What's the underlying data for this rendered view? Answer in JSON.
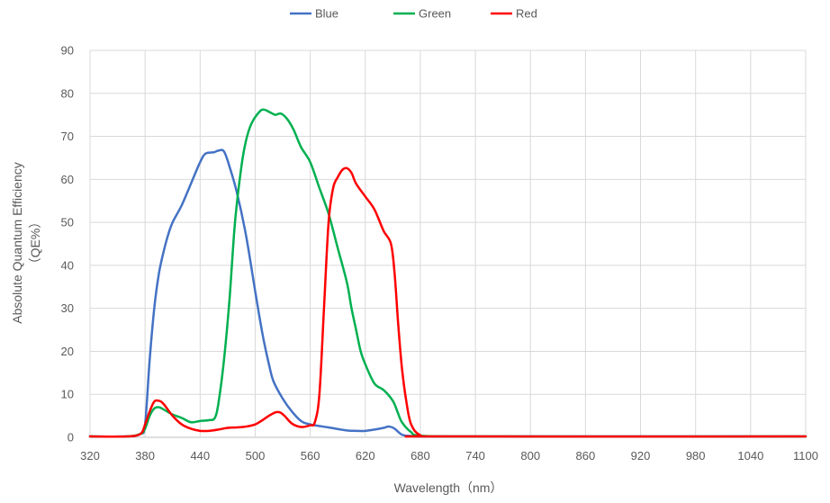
{
  "chart_data": {
    "type": "line",
    "xlabel": "Wavelength（nm）",
    "ylabel_lines": [
      "Absolute Quantum Efficiency",
      "（QE%）"
    ],
    "xlim": [
      320,
      1100
    ],
    "ylim": [
      0,
      90
    ],
    "xticks": [
      320,
      380,
      440,
      500,
      560,
      620,
      680,
      740,
      800,
      860,
      920,
      980,
      1040,
      1100
    ],
    "yticks": [
      0,
      10,
      20,
      30,
      40,
      50,
      60,
      70,
      80,
      90
    ],
    "grid": true,
    "legend_position": "top",
    "series": [
      {
        "name": "Blue",
        "color": "#4472C4",
        "points": [
          [
            320,
            0.2
          ],
          [
            360,
            0.2
          ],
          [
            375,
            0.8
          ],
          [
            380,
            3
          ],
          [
            385,
            18
          ],
          [
            390,
            30
          ],
          [
            395,
            38
          ],
          [
            400,
            43
          ],
          [
            405,
            47
          ],
          [
            410,
            50
          ],
          [
            420,
            54
          ],
          [
            430,
            59
          ],
          [
            440,
            64
          ],
          [
            446,
            66
          ],
          [
            455,
            66.3
          ],
          [
            460,
            66.7
          ],
          [
            466,
            66.5
          ],
          [
            472,
            63
          ],
          [
            480,
            57
          ],
          [
            490,
            47
          ],
          [
            500,
            34
          ],
          [
            508,
            24
          ],
          [
            515,
            17
          ],
          [
            520,
            13
          ],
          [
            530,
            9
          ],
          [
            540,
            6
          ],
          [
            550,
            3.8
          ],
          [
            560,
            3
          ],
          [
            580,
            2.3
          ],
          [
            600,
            1.6
          ],
          [
            610,
            1.5
          ],
          [
            620,
            1.5
          ],
          [
            630,
            1.8
          ],
          [
            640,
            2.2
          ],
          [
            646,
            2.5
          ],
          [
            652,
            2
          ],
          [
            660,
            0.6
          ],
          [
            670,
            0.3
          ],
          [
            680,
            0.2
          ],
          [
            740,
            0.2
          ],
          [
            1100,
            0.2
          ]
        ]
      },
      {
        "name": "Green",
        "color": "#00B050",
        "points": [
          [
            320,
            0.2
          ],
          [
            360,
            0.2
          ],
          [
            375,
            0.8
          ],
          [
            380,
            2
          ],
          [
            385,
            5
          ],
          [
            390,
            6.7
          ],
          [
            395,
            7
          ],
          [
            400,
            6.5
          ],
          [
            410,
            5.3
          ],
          [
            420,
            4.5
          ],
          [
            430,
            3.5
          ],
          [
            440,
            3.8
          ],
          [
            450,
            4
          ],
          [
            456,
            4.5
          ],
          [
            460,
            8
          ],
          [
            466,
            18
          ],
          [
            472,
            32
          ],
          [
            478,
            50
          ],
          [
            485,
            63
          ],
          [
            490,
            69
          ],
          [
            496,
            73
          ],
          [
            505,
            75.8
          ],
          [
            510,
            76.2
          ],
          [
            517,
            75.5
          ],
          [
            522,
            75
          ],
          [
            528,
            75.3
          ],
          [
            535,
            74
          ],
          [
            542,
            71.5
          ],
          [
            550,
            67.5
          ],
          [
            560,
            64
          ],
          [
            570,
            58
          ],
          [
            580,
            52
          ],
          [
            590,
            44
          ],
          [
            600,
            36
          ],
          [
            605,
            30
          ],
          [
            610,
            25
          ],
          [
            615,
            20
          ],
          [
            620,
            17
          ],
          [
            630,
            12.5
          ],
          [
            640,
            11
          ],
          [
            650,
            8.5
          ],
          [
            655,
            6
          ],
          [
            660,
            3.5
          ],
          [
            670,
            1.2
          ],
          [
            680,
            0.4
          ],
          [
            740,
            0.2
          ],
          [
            1100,
            0.2
          ]
        ]
      },
      {
        "name": "Red",
        "color": "#FF0000",
        "points": [
          [
            320,
            0.2
          ],
          [
            360,
            0.2
          ],
          [
            375,
            0.8
          ],
          [
            380,
            3
          ],
          [
            385,
            6
          ],
          [
            390,
            8.3
          ],
          [
            395,
            8.5
          ],
          [
            400,
            7.8
          ],
          [
            410,
            5
          ],
          [
            420,
            3
          ],
          [
            430,
            2
          ],
          [
            440,
            1.5
          ],
          [
            450,
            1.5
          ],
          [
            460,
            1.8
          ],
          [
            470,
            2.2
          ],
          [
            480,
            2.3
          ],
          [
            490,
            2.5
          ],
          [
            500,
            3
          ],
          [
            508,
            4
          ],
          [
            515,
            5
          ],
          [
            522,
            5.8
          ],
          [
            527,
            5.8
          ],
          [
            532,
            5
          ],
          [
            540,
            3.2
          ],
          [
            550,
            2.4
          ],
          [
            560,
            2.8
          ],
          [
            565,
            3.5
          ],
          [
            570,
            10
          ],
          [
            575,
            30
          ],
          [
            580,
            50
          ],
          [
            585,
            58
          ],
          [
            590,
            60.5
          ],
          [
            595,
            62.2
          ],
          [
            600,
            62.6
          ],
          [
            605,
            61.5
          ],
          [
            610,
            59
          ],
          [
            620,
            56
          ],
          [
            630,
            53
          ],
          [
            640,
            48
          ],
          [
            648,
            45
          ],
          [
            652,
            38
          ],
          [
            656,
            26
          ],
          [
            660,
            16
          ],
          [
            665,
            8
          ],
          [
            670,
            3
          ],
          [
            680,
            0.5
          ],
          [
            700,
            0.2
          ],
          [
            1100,
            0.2
          ]
        ]
      }
    ]
  }
}
